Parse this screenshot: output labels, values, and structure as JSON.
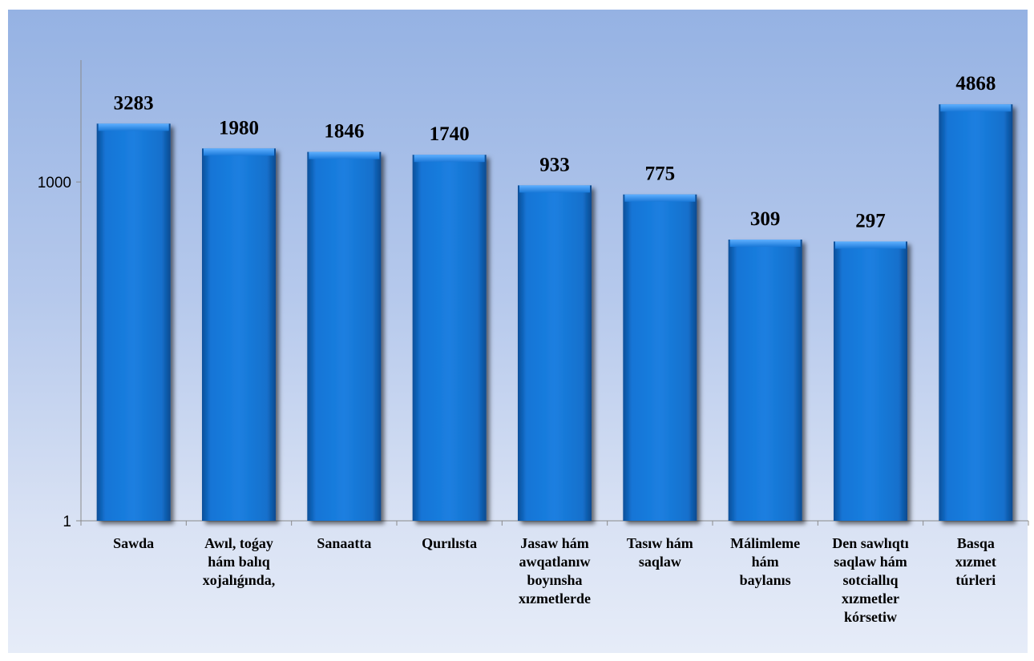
{
  "chart_data": {
    "type": "bar",
    "title": "",
    "xlabel": "",
    "ylabel": "",
    "yscale": "log",
    "ylim": [
      1,
      12000
    ],
    "yticks": [
      1,
      1000
    ],
    "grid": false,
    "categories": [
      [
        "Sawda"
      ],
      [
        "Awıl, toǵay",
        "hám balıq",
        "xojalıǵında,"
      ],
      [
        "Sanaatta"
      ],
      [
        "Qurılısta"
      ],
      [
        "Jasaw hám",
        "awqatlanıw",
        "boyınsha",
        "xızmetlerde"
      ],
      [
        "Tasıw hám",
        "saqlaw"
      ],
      [
        "Málimleme",
        "hám",
        "baylanıs"
      ],
      [
        "Den sawlıqtı",
        "saqlaw hám",
        "sotciallıq",
        "xızmetler",
        "kórsetiw"
      ],
      [
        "Basqa",
        "xızmet",
        "túrleri"
      ]
    ],
    "values": [
      3283,
      1980,
      1846,
      1740,
      933,
      775,
      309,
      297,
      4868
    ],
    "bar_color": "#0a6fd0"
  }
}
